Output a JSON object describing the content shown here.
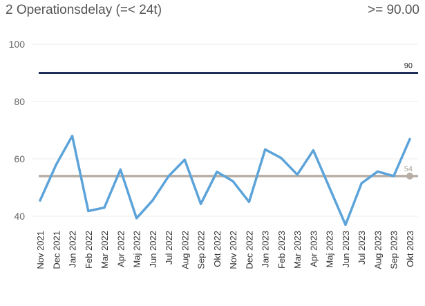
{
  "header": {
    "title": "2 Operationsdelay (=< 24t)",
    "target_text": ">= 90.00"
  },
  "chart_data": {
    "type": "line",
    "title": "2 Operationsdelay (=< 24t)",
    "xlabel": "",
    "ylabel": "",
    "ylim": [
      35,
      100
    ],
    "yticks": [
      40,
      60,
      80,
      100
    ],
    "grid": true,
    "categories": [
      "Nov 2021",
      "Dec 2021",
      "Jan 2022",
      "Feb 2022",
      "Mar 2022",
      "Apr 2022",
      "Maj 2022",
      "Jun 2022",
      "Jul 2022",
      "Aug 2022",
      "Sep 2022",
      "Okt 2022",
      "Nov 2022",
      "Dec 2022",
      "Jan 2023",
      "Feb 2023",
      "Mar 2023",
      "Apr 2023",
      "Maj 2023",
      "Jun 2023",
      "Jul 2023",
      "Aug 2023",
      "Sep 2023",
      "Okt 2023"
    ],
    "series": [
      {
        "values": [
          45.5,
          58,
          68,
          41.8,
          43,
          56.3,
          39.3,
          45.5,
          54,
          59.7,
          44.3,
          55.5,
          52.2,
          45,
          63.3,
          60.3,
          54.5,
          63,
          50,
          37,
          51.5,
          55.6,
          54,
          66.9
        ],
        "color": "#5ba3d9"
      }
    ],
    "reference_lines": [
      {
        "value": 90,
        "label": "90",
        "color": "#1f2d5c"
      },
      {
        "value": 54,
        "label": "54",
        "color": "#b7afa5"
      }
    ]
  }
}
